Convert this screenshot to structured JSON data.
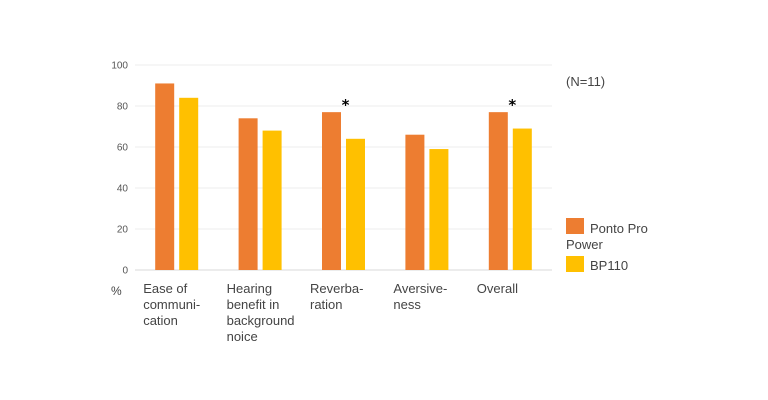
{
  "chart_data": {
    "type": "bar",
    "categories": [
      [
        "Ease of",
        "communi-",
        "cation"
      ],
      [
        "Hearing",
        "benefit in",
        "background",
        "noice"
      ],
      [
        "Reverba-",
        "ration"
      ],
      [
        "Aversive-",
        "ness"
      ],
      [
        "Overall"
      ]
    ],
    "series": [
      {
        "name": "Ponto Pro Power",
        "legend_lines": [
          "Ponto Pro",
          "Power"
        ],
        "color": "#ED7D31",
        "values": [
          91,
          74,
          77,
          66,
          77
        ]
      },
      {
        "name": "BP110",
        "legend_lines": [
          "BP110"
        ],
        "color": "#FFC000",
        "values": [
          84,
          68,
          64,
          59,
          69
        ]
      }
    ],
    "significance_markers": [
      "",
      "",
      "*",
      "",
      "*"
    ],
    "yticks": [
      0,
      20,
      40,
      60,
      80,
      100
    ],
    "ylim": [
      0,
      100
    ],
    "y_unit": "%",
    "annotation": "(N=11)",
    "grid": true,
    "legend_position": "right"
  }
}
